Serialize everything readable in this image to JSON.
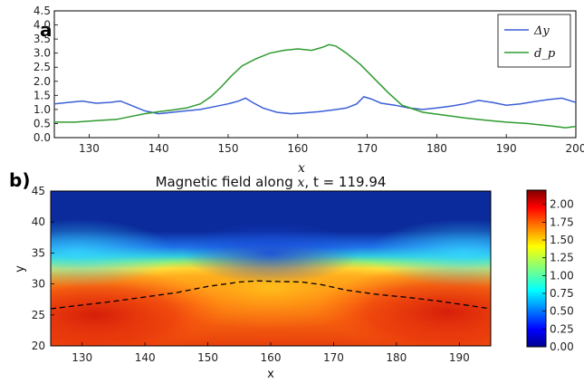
{
  "panel_a": {
    "tag": "a)",
    "xlabel": "x",
    "chart_data": {
      "type": "line",
      "xlabel": "x",
      "ylabel": "",
      "xlim": [
        125,
        200
      ],
      "ylim": [
        0.0,
        4.5
      ],
      "xticks": [
        "130",
        "140",
        "150",
        "160",
        "170",
        "180",
        "190",
        "200"
      ],
      "yticks": [
        "0.0",
        "0.5",
        "1.0",
        "1.5",
        "2.0",
        "2.5",
        "3.0",
        "3.5",
        "4.0",
        "4.5"
      ],
      "grid": false,
      "legend_position": "top-right",
      "series": [
        {
          "name": "Δy",
          "color": "#3b5fd6",
          "x": [
            125,
            127,
            129,
            131,
            133,
            134.5,
            136,
            138,
            140,
            142,
            144,
            146,
            148,
            150,
            151.5,
            152.5,
            153.5,
            155,
            157,
            159,
            161,
            163,
            165,
            167,
            168.5,
            169.5,
            170.5,
            172,
            174,
            176,
            178,
            180,
            182,
            184,
            186,
            188,
            190,
            192,
            194,
            196,
            198,
            200
          ],
          "y": [
            1.2,
            1.25,
            1.3,
            1.22,
            1.25,
            1.3,
            1.15,
            0.95,
            0.85,
            0.9,
            0.95,
            1.0,
            1.1,
            1.2,
            1.3,
            1.4,
            1.25,
            1.05,
            0.9,
            0.85,
            0.88,
            0.92,
            0.98,
            1.05,
            1.2,
            1.45,
            1.38,
            1.22,
            1.15,
            1.05,
            1.0,
            1.05,
            1.12,
            1.2,
            1.32,
            1.25,
            1.15,
            1.2,
            1.28,
            1.35,
            1.4,
            1.25
          ]
        },
        {
          "name": "d_p",
          "color": "#2e9b2e",
          "x": [
            125,
            128,
            131,
            134,
            136,
            138,
            140,
            142,
            144,
            146,
            147.5,
            149,
            150.5,
            152,
            154,
            156,
            158,
            160,
            162,
            163.5,
            164.5,
            165.5,
            167,
            169,
            171,
            173,
            175,
            178,
            181,
            184,
            187,
            190,
            193,
            195,
            197,
            198.5,
            200
          ],
          "y": [
            0.55,
            0.55,
            0.6,
            0.65,
            0.75,
            0.85,
            0.92,
            0.98,
            1.05,
            1.2,
            1.45,
            1.8,
            2.2,
            2.55,
            2.8,
            3.0,
            3.1,
            3.15,
            3.1,
            3.2,
            3.3,
            3.25,
            3.0,
            2.6,
            2.1,
            1.6,
            1.15,
            0.9,
            0.8,
            0.7,
            0.62,
            0.55,
            0.5,
            0.45,
            0.4,
            0.35,
            0.4
          ]
        }
      ]
    }
  },
  "panel_b": {
    "tag": "b)",
    "chart_data": {
      "type": "heatmap",
      "title": "Magnetic field along x, t = 119.94",
      "title_prefix": "Magnetic field along ",
      "title_var": "x",
      "title_suffix": ", t = 119.94",
      "xlabel": "x",
      "ylabel": "y",
      "xlim": [
        125,
        195
      ],
      "ylim": [
        20,
        45
      ],
      "xticks": [
        "130",
        "140",
        "150",
        "160",
        "170",
        "180",
        "190"
      ],
      "yticks": [
        "20",
        "25",
        "30",
        "35",
        "40",
        "45"
      ],
      "colormap": "jet",
      "colorbar_range": [
        0.0,
        2.2
      ],
      "colorbar_ticks": [
        "0.00",
        "0.25",
        "0.50",
        "0.75",
        "1.00",
        "1.25",
        "1.50",
        "1.75",
        "2.00"
      ],
      "dashed_contour": {
        "color": "#000000",
        "x": [
          125,
          130,
          135,
          140,
          145,
          150,
          155,
          158,
          161,
          165,
          168,
          172,
          177,
          182,
          187,
          191,
          195
        ],
        "y": [
          26.0,
          26.6,
          27.2,
          27.9,
          28.6,
          29.6,
          30.3,
          30.5,
          30.4,
          30.3,
          29.9,
          29.0,
          28.3,
          27.8,
          27.2,
          26.6,
          26.0
        ]
      }
    }
  }
}
